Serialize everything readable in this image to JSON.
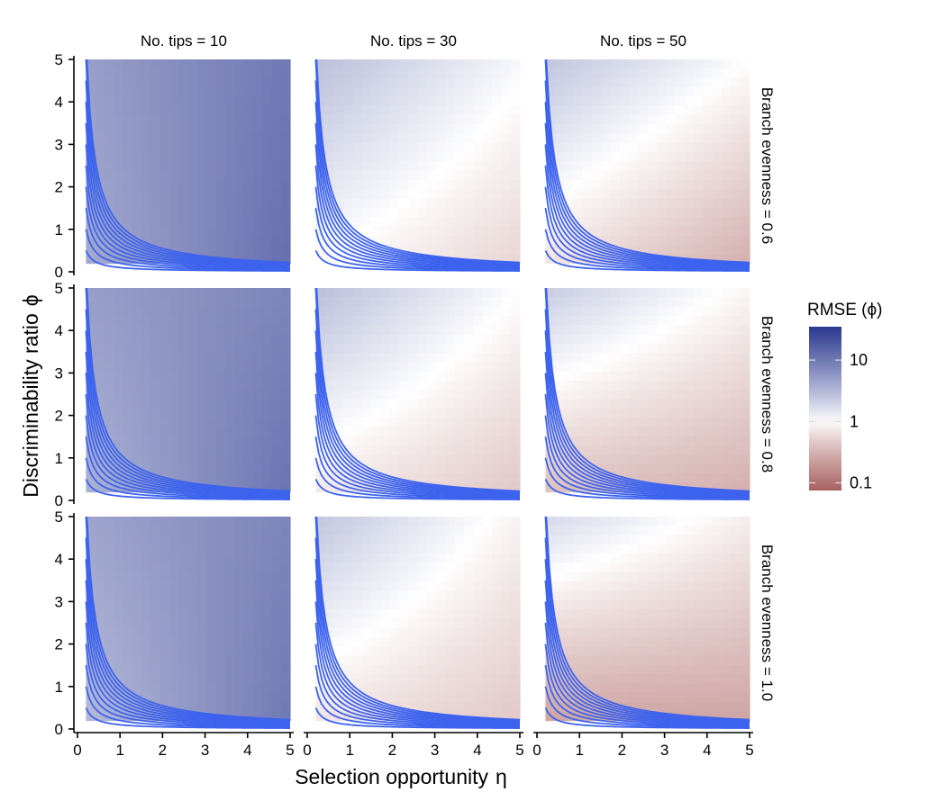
{
  "chart_data": {
    "type": "heatmap",
    "x_label": "Selection opportunity",
    "x_symbol": "η",
    "y_label": "Discriminability ratio",
    "y_symbol": "ϕ",
    "xlim": [
      0,
      5
    ],
    "ylim": [
      0,
      5
    ],
    "x_ticks": [
      0,
      1,
      2,
      3,
      4,
      5
    ],
    "y_ticks": [
      0,
      1,
      2,
      3,
      4,
      5
    ],
    "data_range": [
      0.2,
      5
    ],
    "column_labels": [
      "No. tips = 10",
      "No. tips = 30",
      "No. tips = 50"
    ],
    "row_labels": [
      "Branch evenness = 0.6",
      "Branch evenness = 0.8",
      "Branch evenness = 1.0"
    ],
    "contour_levels": [
      0.1,
      0.2,
      0.3,
      0.4,
      0.5,
      0.6,
      0.7,
      0.8,
      0.9,
      1.0,
      1.1
    ],
    "contour_color": "#3d63ee",
    "legend": {
      "title": "RMSE (ϕ)",
      "scale": "log",
      "range": [
        0.075,
        35
      ],
      "ticks": [
        10,
        1,
        0.1
      ],
      "tick_labels": [
        "10",
        "1",
        "0.1"
      ],
      "colors": {
        "high": "#2b3990",
        "mid": "#ffffff",
        "low": "#a8615f"
      }
    },
    "panels": [
      [
        {
          "corner_rmse": {
            "low_low": 4.0,
            "high_low": 12.0,
            "low_high": 5.0,
            "high_high": 10.0
          }
        },
        {
          "corner_rmse": {
            "low_low": 1.0,
            "high_low": 0.55,
            "low_high": 2.8,
            "high_high": 1.1
          }
        },
        {
          "corner_rmse": {
            "low_low": 0.7,
            "high_low": 0.3,
            "low_high": 2.5,
            "high_high": 1.0
          }
        }
      ],
      [
        {
          "corner_rmse": {
            "low_low": 3.5,
            "high_low": 11.0,
            "low_high": 5.0,
            "high_high": 8.0
          }
        },
        {
          "corner_rmse": {
            "low_low": 0.75,
            "high_low": 0.45,
            "low_high": 2.8,
            "high_high": 1.0
          }
        },
        {
          "corner_rmse": {
            "low_low": 0.4,
            "high_low": 0.3,
            "low_high": 2.2,
            "high_high": 0.9
          }
        }
      ],
      [
        {
          "corner_rmse": {
            "low_low": 3.0,
            "high_low": 10.0,
            "low_high": 4.5,
            "high_high": 8.0
          }
        },
        {
          "corner_rmse": {
            "low_low": 0.7,
            "high_low": 0.45,
            "low_high": 2.5,
            "high_high": 0.85
          }
        },
        {
          "corner_rmse": {
            "low_low": 0.25,
            "high_low": 0.25,
            "low_high": 1.8,
            "high_high": 0.8
          }
        }
      ]
    ]
  }
}
